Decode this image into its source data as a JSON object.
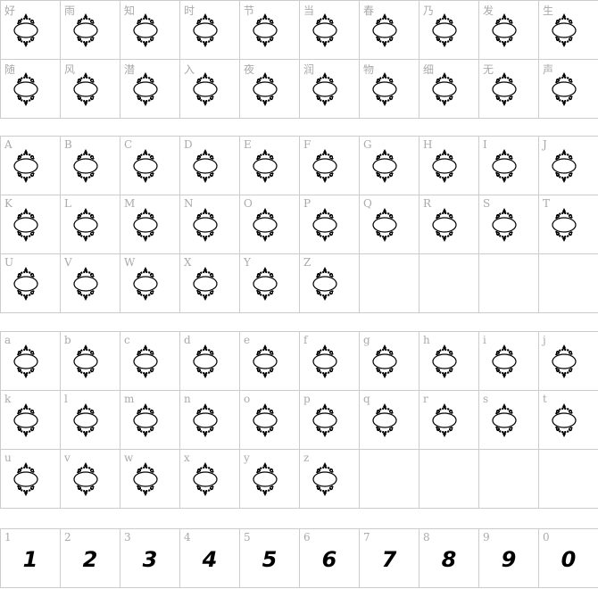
{
  "sections": [
    {
      "labels": [
        "好",
        "雨",
        "知",
        "时",
        "节",
        "当",
        "春",
        "乃",
        "发",
        "生",
        "随",
        "风",
        "潜",
        "入",
        "夜",
        "润",
        "物",
        "细",
        "无",
        "声"
      ],
      "glyph": "ornamental-frame-icon"
    },
    {
      "labels": [
        "A",
        "B",
        "C",
        "D",
        "E",
        "F",
        "G",
        "H",
        "I",
        "J",
        "K",
        "L",
        "M",
        "N",
        "O",
        "P",
        "Q",
        "R",
        "S",
        "T",
        "U",
        "V",
        "W",
        "X",
        "Y",
        "Z"
      ],
      "glyph": "ornamental-frame-icon"
    },
    {
      "labels": [
        "a",
        "b",
        "c",
        "d",
        "e",
        "f",
        "g",
        "h",
        "i",
        "j",
        "k",
        "l",
        "m",
        "n",
        "o",
        "p",
        "q",
        "r",
        "s",
        "t",
        "u",
        "v",
        "w",
        "x",
        "y",
        "z"
      ],
      "glyph": "ornamental-frame-icon"
    },
    {
      "labels": [
        "1",
        "2",
        "3",
        "4",
        "5",
        "6",
        "7",
        "8",
        "9",
        "0"
      ],
      "digits": [
        "1",
        "2",
        "3",
        "4",
        "5",
        "6",
        "7",
        "8",
        "9",
        "0"
      ]
    }
  ],
  "colors": {
    "border": "#cccccc",
    "label": "#aaaaaa",
    "glyph": "#000000"
  }
}
